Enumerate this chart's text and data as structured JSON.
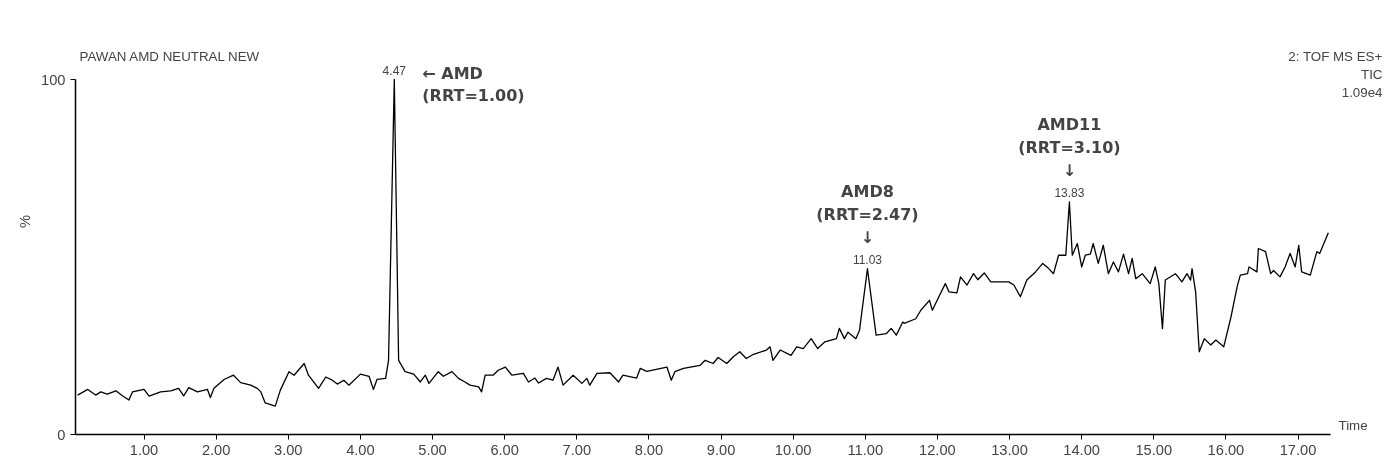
{
  "chart_data": {
    "type": "line",
    "title": "PAWAN  AMD NEUTRAL NEW",
    "subtitle": "2: TOF MS ES+\nTIC\n1.09e4",
    "xlabel": "Time",
    "ylabel": "%",
    "x": [
      0.08,
      0.22,
      0.33,
      0.4,
      0.49,
      0.61,
      0.7,
      0.79,
      0.84,
      1.0,
      1.07,
      1.23,
      1.37,
      1.48,
      1.55,
      1.62,
      1.74,
      1.88,
      1.92,
      1.97,
      2.11,
      2.24,
      2.34,
      2.48,
      2.57,
      2.62,
      2.68,
      2.82,
      2.89,
      3.01,
      3.08,
      3.22,
      3.28,
      3.42,
      3.52,
      3.61,
      3.68,
      3.77,
      3.84,
      4.0,
      4.12,
      4.18,
      4.23,
      4.35,
      4.39,
      4.47,
      4.53,
      4.62,
      4.74,
      4.83,
      4.9,
      4.95,
      5.08,
      5.15,
      5.27,
      5.36,
      5.45,
      5.52,
      5.64,
      5.68,
      5.73,
      5.84,
      5.91,
      6.01,
      6.1,
      6.26,
      6.33,
      6.42,
      6.47,
      6.58,
      6.67,
      6.74,
      6.81,
      6.95,
      7.07,
      7.14,
      7.18,
      7.28,
      7.46,
      7.58,
      7.64,
      7.83,
      7.88,
      7.97,
      8.25,
      8.31,
      8.36,
      8.48,
      8.71,
      8.78,
      8.89,
      8.96,
      9.08,
      9.17,
      9.26,
      9.35,
      9.45,
      9.63,
      9.68,
      9.72,
      9.82,
      9.97,
      10.05,
      10.14,
      10.25,
      10.34,
      10.44,
      10.6,
      10.64,
      10.71,
      10.76,
      10.87,
      10.92,
      11.03,
      11.15,
      11.29,
      11.36,
      11.43,
      11.52,
      11.54,
      11.7,
      11.77,
      11.89,
      11.93,
      12.02,
      12.11,
      12.16,
      12.27,
      12.32,
      12.41,
      12.5,
      12.56,
      12.65,
      12.74,
      12.99,
      13.06,
      13.15,
      13.24,
      13.36,
      13.46,
      13.54,
      13.61,
      13.68,
      13.78,
      13.83,
      13.87,
      13.94,
      14.0,
      14.05,
      14.12,
      14.16,
      14.23,
      14.3,
      14.37,
      14.44,
      14.51,
      14.58,
      14.65,
      14.7,
      14.75,
      14.84,
      14.95,
      15.02,
      15.07,
      15.12,
      15.16,
      15.3,
      15.39,
      15.46,
      15.51,
      15.53,
      15.58,
      15.63,
      15.7,
      15.79,
      15.86,
      15.97,
      16.07,
      16.16,
      16.2,
      16.3,
      16.32,
      16.43,
      16.45,
      16.55,
      16.62,
      16.66,
      16.75,
      16.82,
      16.89,
      16.96,
      17.01,
      17.05,
      17.17,
      17.26,
      17.3,
      17.42
    ],
    "series": [
      {
        "color": "#000000",
        "values": [
          11.1,
          12.7,
          11.1,
          12.0,
          11.4,
          12.3,
          10.9,
          9.7,
          12.0,
          12.7,
          10.8,
          12.0,
          12.3,
          13.0,
          10.9,
          13.2,
          12.0,
          12.7,
          10.4,
          13.0,
          15.5,
          16.7,
          14.6,
          13.9,
          13.0,
          12.0,
          8.9,
          8.0,
          12.5,
          17.7,
          16.7,
          20.0,
          16.7,
          13.0,
          16.2,
          15.3,
          14.2,
          15.3,
          13.9,
          17.0,
          16.4,
          12.7,
          15.5,
          15.8,
          20.9,
          100,
          20.9,
          17.7,
          17.0,
          14.8,
          16.7,
          14.4,
          17.7,
          16.4,
          17.7,
          15.8,
          14.8,
          13.9,
          13.4,
          12.0,
          16.7,
          16.7,
          18.1,
          19.0,
          16.7,
          17.2,
          14.8,
          15.9,
          14.5,
          15.8,
          15.3,
          19.0,
          13.9,
          16.7,
          14.4,
          15.8,
          13.9,
          17.2,
          17.4,
          14.8,
          16.7,
          15.9,
          18.6,
          17.8,
          19.0,
          15.3,
          17.7,
          18.6,
          19.5,
          20.9,
          20.0,
          21.7,
          20.0,
          21.9,
          23.3,
          21.4,
          22.6,
          23.8,
          24.7,
          20.9,
          23.8,
          22.3,
          24.7,
          24.2,
          27.0,
          24.2,
          26.1,
          27.0,
          29.9,
          27.0,
          28.8,
          27.0,
          29.4,
          46.7,
          28.0,
          28.4,
          29.9,
          28.0,
          31.7,
          31.3,
          32.6,
          35.0,
          37.8,
          35.0,
          38.8,
          42.5,
          40.2,
          39.9,
          44.4,
          42.1,
          45.3,
          43.6,
          45.5,
          43.0,
          43.0,
          42.1,
          38.8,
          43.5,
          45.8,
          48.2,
          46.8,
          45.3,
          50.5,
          50.5,
          65.5,
          50.5,
          53.8,
          47.2,
          50.5,
          50.8,
          53.8,
          48.2,
          53.3,
          45.3,
          48.6,
          45.8,
          50.8,
          45.3,
          49.6,
          43.9,
          45.3,
          42.5,
          47.2,
          42.5,
          29.8,
          43.5,
          45.3,
          43.0,
          45.3,
          43.5,
          46.7,
          40.2,
          23.3,
          27.0,
          25.2,
          26.6,
          24.7,
          33.1,
          42.0,
          44.9,
          45.3,
          47.2,
          45.8,
          52.4,
          51.5,
          45.3,
          46.2,
          44.4,
          47.2,
          51.0,
          47.2,
          53.3,
          45.8,
          44.9,
          51.5,
          51.0,
          56.8
        ]
      }
    ],
    "xlim": [
      0.05,
      17.45
    ],
    "ylim": [
      0,
      100
    ],
    "xticks": [
      {
        "value": 1,
        "label": "1.00"
      },
      {
        "value": 2,
        "label": "2.00"
      },
      {
        "value": 3,
        "label": "3.00"
      },
      {
        "value": 4,
        "label": "4.00"
      },
      {
        "value": 5,
        "label": "5.00"
      },
      {
        "value": 6,
        "label": "6.00"
      },
      {
        "value": 7,
        "label": "7.00"
      },
      {
        "value": 8,
        "label": "8.00"
      },
      {
        "value": 9,
        "label": "9.00"
      },
      {
        "value": 10,
        "label": "10.00"
      },
      {
        "value": 11,
        "label": "11.00"
      },
      {
        "value": 12,
        "label": "12.00"
      },
      {
        "value": 13,
        "label": "13.00"
      },
      {
        "value": 14,
        "label": "14.00"
      },
      {
        "value": 15,
        "label": "15.00"
      },
      {
        "value": 16,
        "label": "16.00"
      },
      {
        "value": 17,
        "label": "17.00"
      }
    ],
    "yticks": [
      0,
      100
    ],
    "grid": false,
    "marker": "none",
    "line_style": "solid",
    "annotations": [
      {
        "text": "4.47",
        "x": 4.47,
        "y": 100
      },
      {
        "text": "←  AMD\n(RRT=1.00)",
        "x": 4.47,
        "y": 100
      },
      {
        "text": "11.03",
        "x": 11.03,
        "y": 46.7
      },
      {
        "text": "AMD8\n(RRT=2.47)\n↓",
        "x": 11.03,
        "y": 46.7
      },
      {
        "text": "13.83",
        "x": 13.83,
        "y": 65.5
      },
      {
        "text": "AMD11\n(RRT=3.10)\n↓",
        "x": 13.83,
        "y": 65.5
      }
    ]
  }
}
